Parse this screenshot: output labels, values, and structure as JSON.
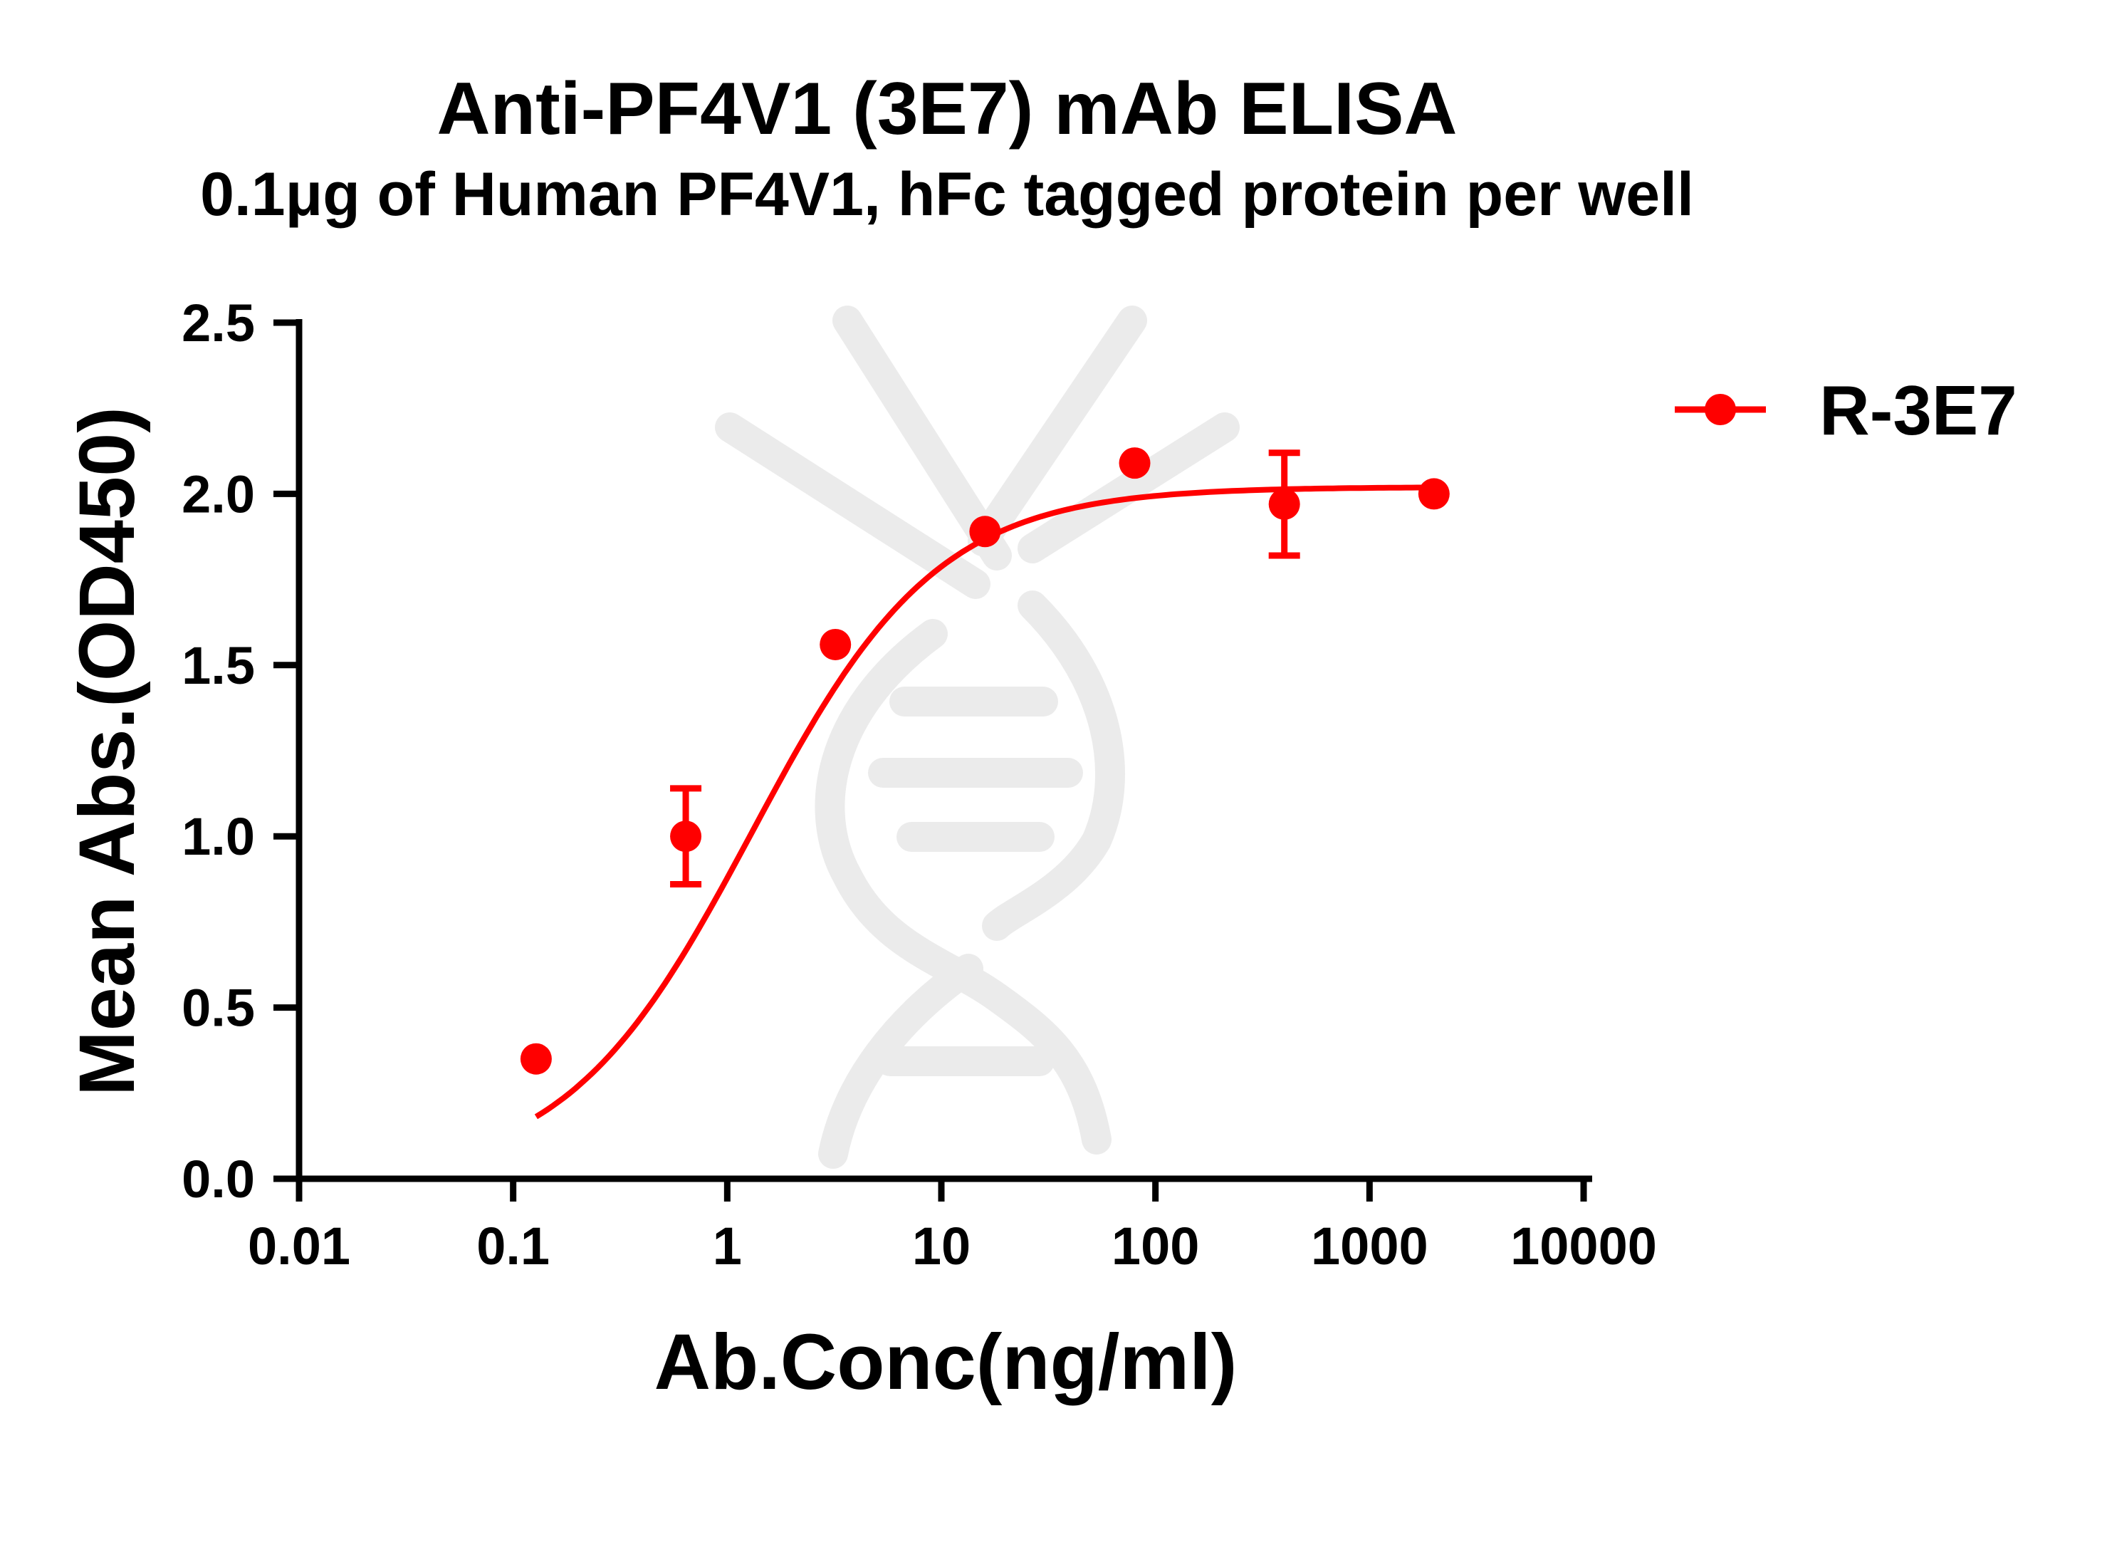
{
  "chart_data": {
    "type": "scatter",
    "title": "Anti-PF4V1 (3E7) mAb ELISA",
    "subtitle": "0.1μg of Human PF4V1, hFc tagged protein per well",
    "xlabel": "Ab.Conc(ng/ml)",
    "ylabel": "Mean Abs.(OD450)",
    "xscale": "log",
    "xlim": [
      0.01,
      10000
    ],
    "ylim": [
      0.0,
      2.5
    ],
    "xticks": [
      0.01,
      0.1,
      1,
      10,
      100,
      1000,
      10000
    ],
    "xtick_labels": [
      "0.01",
      "0.1",
      "1",
      "10",
      "100",
      "1000",
      "10000"
    ],
    "yticks": [
      0.0,
      0.5,
      1.0,
      1.5,
      2.0,
      2.5
    ],
    "ytick_labels": [
      "0.0",
      "0.5",
      "1.0",
      "1.5",
      "2.0",
      "2.5"
    ],
    "grid": false,
    "legend_position": "top-right",
    "fit": "sigmoidal 4PL curve",
    "series": [
      {
        "name": "R-3E7",
        "color": "#ff0000",
        "points": [
          {
            "x": 0.128,
            "y": 0.35,
            "err": 0.0
          },
          {
            "x": 0.64,
            "y": 1.0,
            "err": 0.14
          },
          {
            "x": 3.2,
            "y": 1.56,
            "err": 0.0
          },
          {
            "x": 16,
            "y": 1.89,
            "err": 0.0
          },
          {
            "x": 80,
            "y": 2.09,
            "err": 0.0
          },
          {
            "x": 400,
            "y": 1.97,
            "err": 0.15
          },
          {
            "x": 2000,
            "y": 2.0,
            "err": 0.0
          }
        ],
        "fit_params": {
          "bottom": 0.0,
          "top": 2.02,
          "ec50": 1.3,
          "hill": 1.0
        }
      }
    ],
    "watermark": "dna-helix-watermark-icon"
  }
}
